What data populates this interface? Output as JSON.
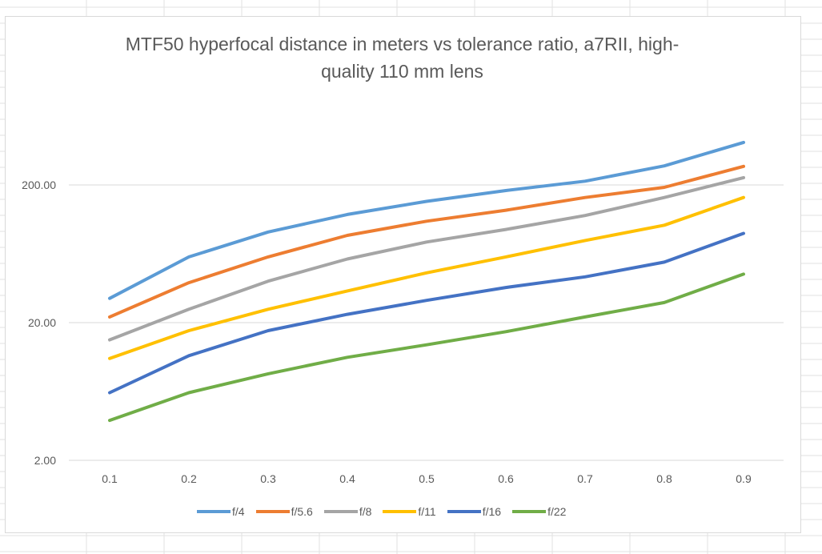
{
  "chart_data": {
    "type": "line",
    "title_lines": [
      "MTF50 hyperfocal distance in meters vs tolerance ratio, a7RII, high-",
      "quality 110 mm lens"
    ],
    "xlabel": "",
    "ylabel": "",
    "y_scale": "log",
    "ylim": [
      2,
      1000
    ],
    "grid": true,
    "legend_position": "bottom",
    "x": [
      "0.1",
      "0.2",
      "0.3",
      "0.4",
      "0.5",
      "0.6",
      "0.7",
      "0.8",
      "0.9"
    ],
    "y_ticks": [
      "2.00",
      "20.00",
      "200.00"
    ],
    "y_tick_values": [
      2,
      20,
      200
    ],
    "series": [
      {
        "name": "f/4",
        "color": "#5B9BD5",
        "values": [
          30,
          60,
          91,
          122,
          152,
          182,
          213,
          275,
          407
        ]
      },
      {
        "name": "f/5.6",
        "color": "#ED7D31",
        "values": [
          22,
          39,
          60,
          86,
          109,
          131,
          162,
          192,
          273
        ]
      },
      {
        "name": "f/8",
        "color": "#A5A5A5",
        "values": [
          15,
          25,
          40,
          58,
          77,
          95,
          120,
          162,
          226
        ]
      },
      {
        "name": "f/11",
        "color": "#FFC000",
        "values": [
          11,
          17.5,
          25,
          34,
          46,
          60,
          79,
          102,
          162
        ]
      },
      {
        "name": "f/16",
        "color": "#4472C4",
        "values": [
          6.2,
          11.5,
          17.5,
          23,
          29,
          36,
          43,
          55,
          89
        ]
      },
      {
        "name": "f/22",
        "color": "#70AD47",
        "values": [
          3.9,
          6.2,
          8.5,
          11.2,
          13.8,
          17.2,
          22,
          28,
          45
        ]
      }
    ]
  }
}
